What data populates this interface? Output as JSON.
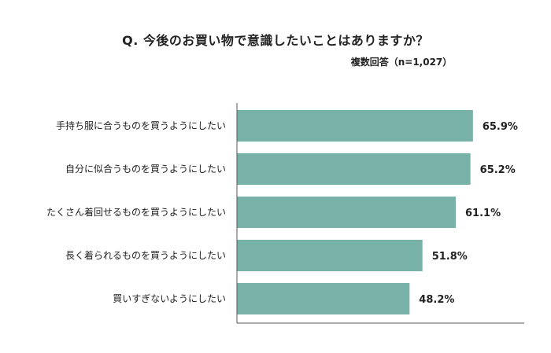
{
  "title": "Q. 今後のお買い物で意識したいことはありますか？",
  "subtitle": "複数回答（n=1,027）",
  "colors": {
    "bar": "#77b1a8",
    "axis": "#555555"
  },
  "chart_data": {
    "type": "bar",
    "orientation": "horizontal",
    "categories": [
      "手持ち服に合うものを買うようにしたい",
      "自分に似合うものを買うようにしたい",
      "たくさん着回せるものを買うようにしたい",
      "長く着られるものを買うようにしたい",
      "買いすぎないようにしたい"
    ],
    "values": [
      65.9,
      65.2,
      61.1,
      51.8,
      48.2
    ],
    "value_labels": [
      "65.9%",
      "65.2%",
      "61.1%",
      "51.8%",
      "48.2%"
    ],
    "xlim": [
      0,
      100
    ],
    "grid": false,
    "legend": "none"
  }
}
